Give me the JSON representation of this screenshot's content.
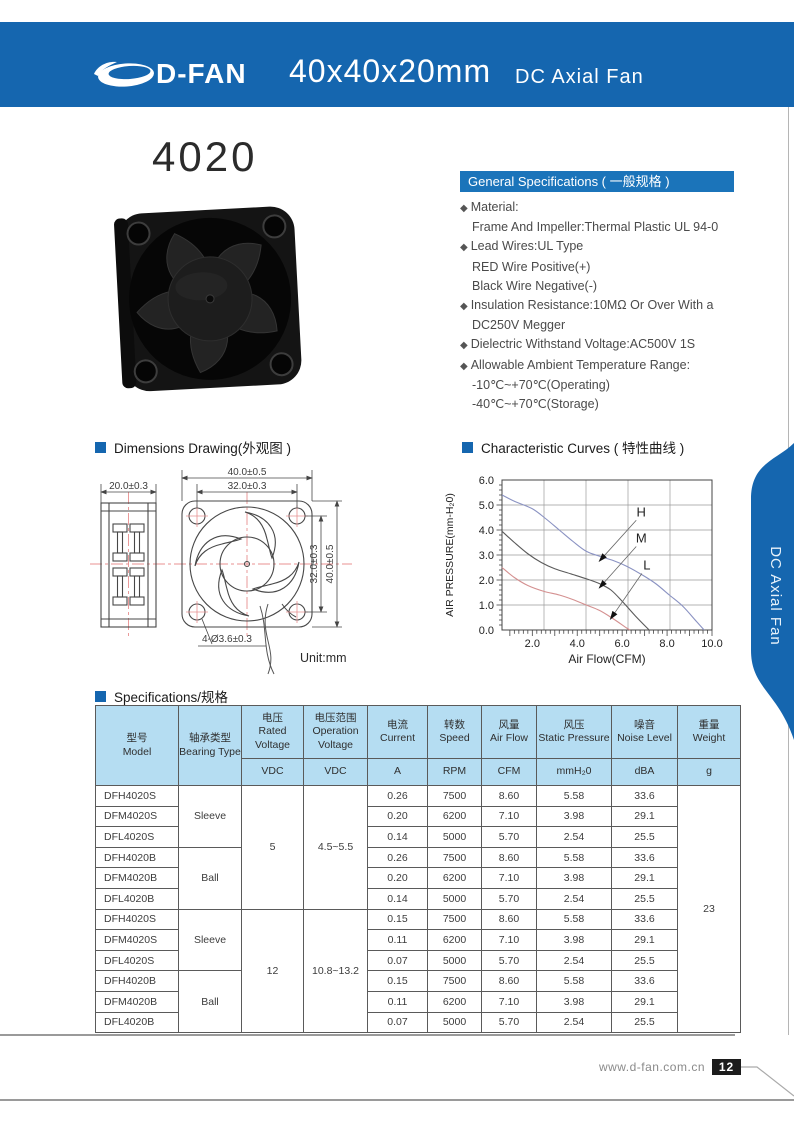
{
  "header": {
    "brand": "D-FAN",
    "size_title": "40x40x20mm",
    "product_type": "DC Axial Fan"
  },
  "model_title": "4020",
  "general": {
    "heading": "General Specifications ( 一般规格 )",
    "items": [
      {
        "b": 1,
        "t": "Material:"
      },
      {
        "b": 0,
        "t": "Frame And Impeller:Thermal Plastic UL 94-0"
      },
      {
        "b": 1,
        "t": "Lead Wires:UL Type"
      },
      {
        "b": 0,
        "t": "RED Wire Positive(+)"
      },
      {
        "b": 0,
        "t": "Black Wire Negative(-)"
      },
      {
        "b": 1,
        "t": "Insulation Resistance:10MΩ Or Over With a"
      },
      {
        "b": 0,
        "t": "DC250V Megger"
      },
      {
        "b": 1,
        "t": "Dielectric Withstand Voltage:AC500V 1S"
      },
      {
        "b": 1,
        "t": "Allowable Ambient Temperature Range:"
      },
      {
        "b": 0,
        "t": "-10℃~+70℃(Operating)"
      },
      {
        "b": 0,
        "t": "-40℃~+70℃(Storage)"
      }
    ]
  },
  "sections": {
    "dimensions": "Dimensions Drawing(外观图 )",
    "curves": "Characteristic Curves ( 特性曲线 )",
    "specs": "Specifications/规格"
  },
  "dims": {
    "side_width": "20.0±0.3",
    "outer_width": "40.0±0.5",
    "hole_pitch_h": "32.0±0.3",
    "hole_pitch_v": "32.0±0.3",
    "outer_height": "40.0±0.5",
    "holes_note": "4-Ø3.6±0.3",
    "unit": "Unit:mm"
  },
  "chart_data": {
    "type": "line",
    "title": "Characteristic Curves ( 特性曲线 )",
    "xlabel": "Air Flow(CFM)",
    "ylabel": "AIR PRESSURE(mm-H₂0)",
    "xlim": [
      0.65,
      10.0
    ],
    "ylim": [
      0,
      6
    ],
    "x_ticks": [
      2.0,
      4.0,
      6.0,
      8.0,
      10.0
    ],
    "y_ticks": [
      0.0,
      1.0,
      2.0,
      3.0,
      4.0,
      5.0,
      6.0
    ],
    "x_grid": [
      2.52,
      4.39,
      6.26,
      8.13
    ],
    "y_grid": [
      1,
      2,
      3,
      4,
      5
    ],
    "grid": true,
    "series": [
      {
        "name": "H",
        "color": "#8a92c2",
        "points": [
          [
            0.65,
            5.4
          ],
          [
            1.2,
            5.15
          ],
          [
            2.0,
            4.85
          ],
          [
            2.6,
            4.45
          ],
          [
            3.2,
            4.0
          ],
          [
            3.8,
            3.55
          ],
          [
            4.4,
            3.15
          ],
          [
            5.0,
            2.95
          ],
          [
            5.6,
            2.78
          ],
          [
            6.2,
            2.55
          ],
          [
            6.9,
            2.2
          ],
          [
            7.5,
            1.85
          ],
          [
            8.1,
            1.4
          ],
          [
            8.7,
            0.95
          ],
          [
            9.3,
            0.35
          ],
          [
            9.65,
            0.0
          ]
        ]
      },
      {
        "name": "M",
        "color": "#5a5a5a",
        "points": [
          [
            0.65,
            3.95
          ],
          [
            1.2,
            3.5
          ],
          [
            1.8,
            3.05
          ],
          [
            2.4,
            2.7
          ],
          [
            3.0,
            2.45
          ],
          [
            3.7,
            2.25
          ],
          [
            4.4,
            2.05
          ],
          [
            5.0,
            1.85
          ],
          [
            5.5,
            1.6
          ],
          [
            6.0,
            1.15
          ],
          [
            6.6,
            0.55
          ],
          [
            7.2,
            0.0
          ]
        ]
      },
      {
        "name": "L",
        "color": "#d49090",
        "points": [
          [
            0.65,
            2.5
          ],
          [
            1.2,
            2.1
          ],
          [
            1.8,
            1.78
          ],
          [
            2.5,
            1.55
          ],
          [
            3.2,
            1.4
          ],
          [
            3.8,
            1.22
          ],
          [
            4.4,
            1.0
          ],
          [
            5.0,
            0.78
          ],
          [
            5.6,
            0.45
          ],
          [
            6.2,
            0.08
          ],
          [
            6.35,
            0.0
          ]
        ]
      }
    ],
    "annotations": [
      {
        "label": "H",
        "label_xy": [
          6.85,
          4.55
        ],
        "tip_xy": [
          4.95,
          2.72
        ]
      },
      {
        "label": "M",
        "label_xy": [
          6.85,
          3.5
        ],
        "tip_xy": [
          4.95,
          1.65
        ]
      },
      {
        "label": "L",
        "label_xy": [
          7.1,
          2.42
        ],
        "tip_xy": [
          5.45,
          0.4
        ]
      }
    ]
  },
  "table": {
    "col_headers": [
      {
        "zh": "型号",
        "en": "Model",
        "unit": ""
      },
      {
        "zh": "轴承类型",
        "en": "Bearing Type",
        "unit": ""
      },
      {
        "zh": "电压",
        "en": "Rated Voltage",
        "unit": "VDC"
      },
      {
        "zh": "电压范围",
        "en": "Operation Voltage",
        "unit": "VDC"
      },
      {
        "zh": "电流",
        "en": "Current",
        "unit": "A"
      },
      {
        "zh": "转数",
        "en": "Speed",
        "unit": "RPM"
      },
      {
        "zh": "风量",
        "en": "Air Flow",
        "unit": "CFM"
      },
      {
        "zh": "风压",
        "en": "Static Pressure",
        "unit": "mmH₂0"
      },
      {
        "zh": "噪音",
        "en": "Noise Level",
        "unit": "dBA"
      },
      {
        "zh": "重量",
        "en": "Weight",
        "unit": "g"
      }
    ],
    "weight": "23",
    "groups": [
      {
        "voltage": "5",
        "range": "4.5~5.5",
        "bearings": [
          {
            "type": "Sleeve",
            "rows": [
              [
                "DFH4020S",
                "0.26",
                "7500",
                "8.60",
                "5.58",
                "33.6"
              ],
              [
                "DFM4020S",
                "0.20",
                "6200",
                "7.10",
                "3.98",
                "29.1"
              ],
              [
                "DFL4020S",
                "0.14",
                "5000",
                "5.70",
                "2.54",
                "25.5"
              ]
            ]
          },
          {
            "type": "Ball",
            "rows": [
              [
                "DFH4020B",
                "0.26",
                "7500",
                "8.60",
                "5.58",
                "33.6"
              ],
              [
                "DFM4020B",
                "0.20",
                "6200",
                "7.10",
                "3.98",
                "29.1"
              ],
              [
                "DFL4020B",
                "0.14",
                "5000",
                "5.70",
                "2.54",
                "25.5"
              ]
            ]
          }
        ]
      },
      {
        "voltage": "12",
        "range": "10.8~13.2",
        "bearings": [
          {
            "type": "Sleeve",
            "rows": [
              [
                "DFH4020S",
                "0.15",
                "7500",
                "8.60",
                "5.58",
                "33.6"
              ],
              [
                "DFM4020S",
                "0.11",
                "6200",
                "7.10",
                "3.98",
                "29.1"
              ],
              [
                "DFL4020S",
                "0.07",
                "5000",
                "5.70",
                "2.54",
                "25.5"
              ]
            ]
          },
          {
            "type": "Ball",
            "rows": [
              [
                "DFH4020B",
                "0.15",
                "7500",
                "8.60",
                "5.58",
                "33.6"
              ],
              [
                "DFM4020B",
                "0.11",
                "6200",
                "7.10",
                "3.98",
                "29.1"
              ],
              [
                "DFL4020B",
                "0.07",
                "5000",
                "5.70",
                "2.54",
                "25.5"
              ]
            ]
          }
        ]
      }
    ]
  },
  "footer": {
    "website": "www.d-fan.com.cn",
    "page": "12"
  },
  "tab": {
    "label": "DC Axial Fan"
  },
  "colors": {
    "header_blue": "#1566af",
    "bar_blue": "#1b74ba",
    "table_header_blue": "#b5ddf2",
    "curve_h": "#8a92c2",
    "curve_m": "#5a5a5a",
    "curve_l": "#d49090",
    "centerline_red": "#e89090",
    "badge_black": "#1c1c1c"
  }
}
